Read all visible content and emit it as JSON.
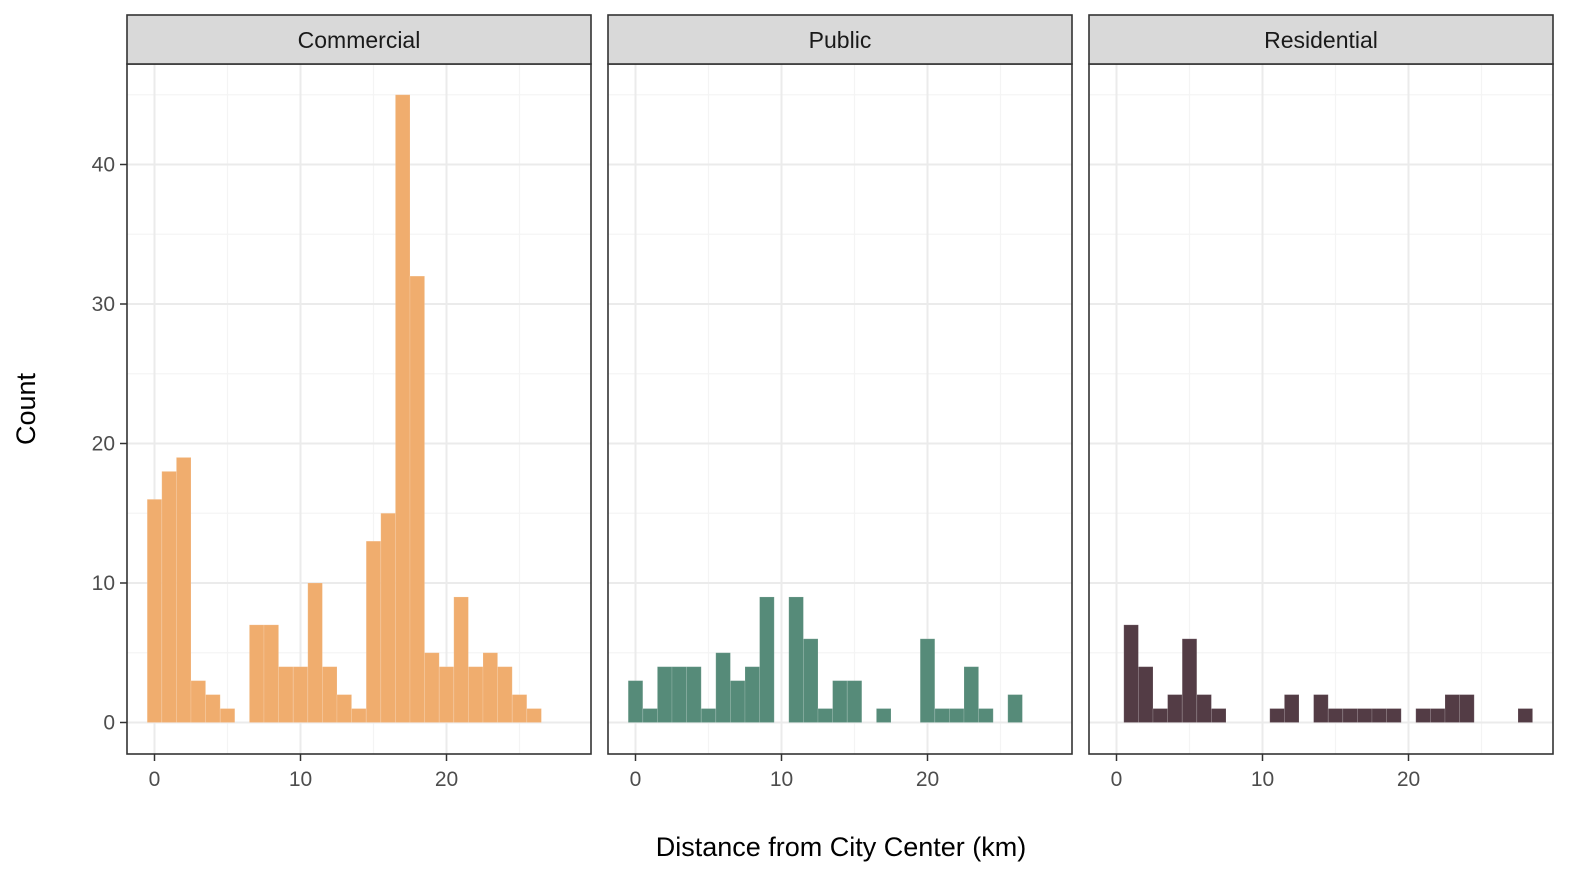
{
  "chart_data": {
    "type": "bar",
    "xlabel": "Distance from City Center (km)",
    "ylabel": "Count",
    "xlim": [
      -2,
      30
    ],
    "ylim": [
      -2.25,
      47.25
    ],
    "x_ticks": [
      0,
      10,
      20
    ],
    "y_ticks": [
      0,
      10,
      20,
      30,
      40
    ],
    "bin_width": 1,
    "grid": true,
    "legend": "none",
    "panels": [
      {
        "name": "Commercial",
        "color": "#F0AD6E",
        "bins": [
          {
            "x": 0,
            "count": 16
          },
          {
            "x": 1,
            "count": 18
          },
          {
            "x": 2,
            "count": 19
          },
          {
            "x": 3,
            "count": 3
          },
          {
            "x": 4,
            "count": 2
          },
          {
            "x": 5,
            "count": 1
          },
          {
            "x": 7,
            "count": 7
          },
          {
            "x": 8,
            "count": 7
          },
          {
            "x": 9,
            "count": 4
          },
          {
            "x": 10,
            "count": 4
          },
          {
            "x": 11,
            "count": 10
          },
          {
            "x": 12,
            "count": 4
          },
          {
            "x": 13,
            "count": 2
          },
          {
            "x": 14,
            "count": 1
          },
          {
            "x": 15,
            "count": 13
          },
          {
            "x": 16,
            "count": 15
          },
          {
            "x": 17,
            "count": 45
          },
          {
            "x": 18,
            "count": 32
          },
          {
            "x": 19,
            "count": 5
          },
          {
            "x": 20,
            "count": 4
          },
          {
            "x": 21,
            "count": 9
          },
          {
            "x": 22,
            "count": 4
          },
          {
            "x": 23,
            "count": 5
          },
          {
            "x": 24,
            "count": 4
          },
          {
            "x": 25,
            "count": 2
          },
          {
            "x": 26,
            "count": 1
          }
        ]
      },
      {
        "name": "Public",
        "color": "#568B79",
        "bins": [
          {
            "x": 0,
            "count": 3
          },
          {
            "x": 1,
            "count": 1
          },
          {
            "x": 2,
            "count": 4
          },
          {
            "x": 3,
            "count": 4
          },
          {
            "x": 4,
            "count": 4
          },
          {
            "x": 5,
            "count": 1
          },
          {
            "x": 6,
            "count": 5
          },
          {
            "x": 7,
            "count": 3
          },
          {
            "x": 8,
            "count": 4
          },
          {
            "x": 9,
            "count": 9
          },
          {
            "x": 11,
            "count": 9
          },
          {
            "x": 12,
            "count": 6
          },
          {
            "x": 13,
            "count": 1
          },
          {
            "x": 14,
            "count": 3
          },
          {
            "x": 15,
            "count": 3
          },
          {
            "x": 17,
            "count": 1
          },
          {
            "x": 20,
            "count": 6
          },
          {
            "x": 21,
            "count": 1
          },
          {
            "x": 22,
            "count": 1
          },
          {
            "x": 23,
            "count": 4
          },
          {
            "x": 24,
            "count": 1
          },
          {
            "x": 26,
            "count": 2
          }
        ]
      },
      {
        "name": "Residential",
        "color": "#533C45",
        "bins": [
          {
            "x": 1,
            "count": 7
          },
          {
            "x": 2,
            "count": 4
          },
          {
            "x": 3,
            "count": 1
          },
          {
            "x": 4,
            "count": 2
          },
          {
            "x": 5,
            "count": 6
          },
          {
            "x": 6,
            "count": 2
          },
          {
            "x": 7,
            "count": 1
          },
          {
            "x": 11,
            "count": 1
          },
          {
            "x": 12,
            "count": 2
          },
          {
            "x": 14,
            "count": 2
          },
          {
            "x": 15,
            "count": 1
          },
          {
            "x": 16,
            "count": 1
          },
          {
            "x": 17,
            "count": 1
          },
          {
            "x": 18,
            "count": 1
          },
          {
            "x": 19,
            "count": 1
          },
          {
            "x": 21,
            "count": 1
          },
          {
            "x": 22,
            "count": 1
          },
          {
            "x": 23,
            "count": 2
          },
          {
            "x": 24,
            "count": 2
          },
          {
            "x": 28,
            "count": 1
          }
        ]
      }
    ]
  }
}
